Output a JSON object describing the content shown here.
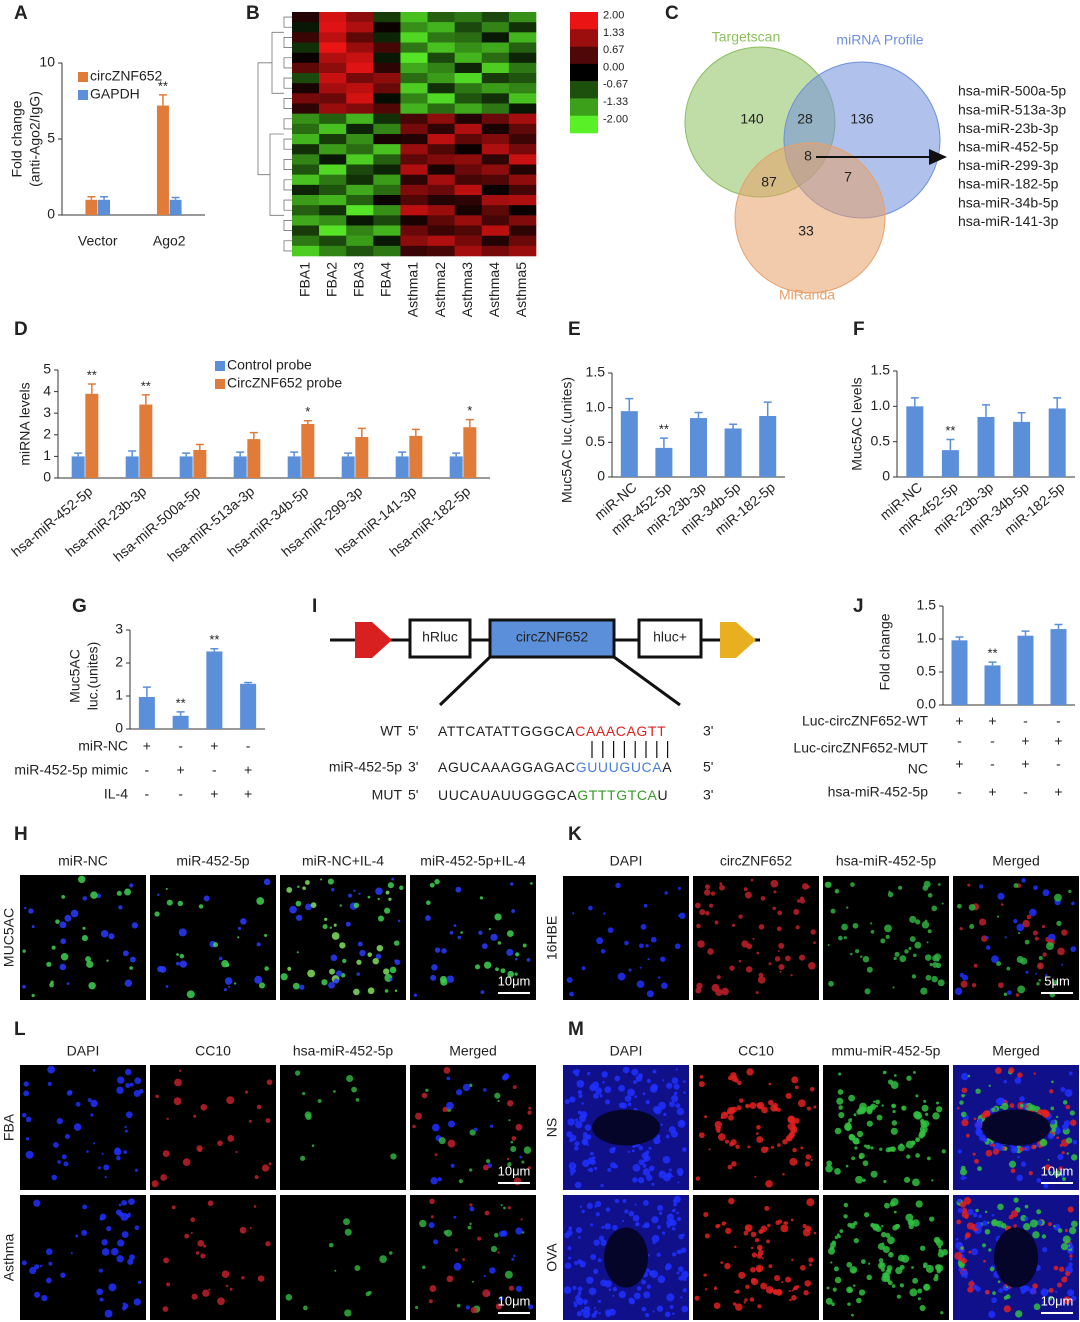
{
  "panel_labels": [
    "A",
    "B",
    "C",
    "D",
    "E",
    "F",
    "G",
    "H",
    "I",
    "J",
    "K",
    "L",
    "M"
  ],
  "chart_data": [
    {
      "type": "bar",
      "ylabel": [
        "Fold change",
        "(anti-Ago2/IgG)"
      ],
      "categories": [
        "Vector",
        "Ago2"
      ],
      "series": [
        {
          "name": "circZNF652",
          "color": "#e07b39",
          "values": [
            1.0,
            7.2
          ],
          "errors": [
            0.2,
            0.7
          ],
          "significance": [
            null,
            "**"
          ]
        },
        {
          "name": "GAPDH",
          "color": "#5b8fd9",
          "values": [
            1.0,
            1.0
          ],
          "errors": [
            0.2,
            0.15
          ],
          "significance": [
            null,
            null
          ]
        }
      ],
      "ylim": [
        0,
        10
      ],
      "yticks": [
        0,
        5,
        10
      ]
    },
    {
      "type": "heatmap",
      "columns": [
        "FBA1",
        "FBA2",
        "FBA3",
        "FBA4",
        "Asthma1",
        "Asthma2",
        "Asthma3",
        "Asthma4",
        "Asthma5"
      ],
      "clim": [
        -2,
        2
      ],
      "colorbar_ticks": [
        {
          "value": 2,
          "label": "2.00"
        },
        {
          "value": 1.33,
          "label": "1.33"
        },
        {
          "value": 0.67,
          "label": "0.67"
        },
        {
          "value": 0,
          "label": "0.00"
        },
        {
          "value": -0.67,
          "label": "-0.67"
        },
        {
          "value": -1.33,
          "label": "-1.33"
        },
        {
          "value": -2,
          "label": "-2.00"
        }
      ],
      "values": [
        [
          0.3,
          1.8,
          1.2,
          -0.5,
          -1.6,
          -0.8,
          -1.0,
          -0.6,
          -1.2
        ],
        [
          -0.2,
          1.9,
          1.5,
          0.1,
          -1.2,
          -1.5,
          -0.6,
          -1.1,
          -0.4
        ],
        [
          0.5,
          1.6,
          0.8,
          -0.3,
          -1.8,
          -1.0,
          -0.9,
          -0.2,
          -1.5
        ],
        [
          -0.4,
          2.0,
          1.3,
          0.6,
          -1.0,
          -1.6,
          -1.2,
          -1.4,
          -0.8
        ],
        [
          0.1,
          1.5,
          1.7,
          -0.2,
          -1.9,
          -0.6,
          -1.5,
          -0.9,
          -0.3
        ],
        [
          0.8,
          1.2,
          1.9,
          0.4,
          -1.4,
          -1.1,
          -0.3,
          -1.7,
          -1.0
        ],
        [
          -0.6,
          1.7,
          1.0,
          1.2,
          -0.9,
          -1.3,
          -1.8,
          -0.5,
          -0.7
        ],
        [
          0.2,
          1.4,
          1.6,
          0.9,
          -1.7,
          -0.4,
          -1.0,
          -1.3,
          -1.1
        ],
        [
          1.0,
          0.9,
          1.8,
          -0.1,
          -1.1,
          -1.8,
          -0.7,
          -0.4,
          -1.6
        ],
        [
          0.4,
          1.3,
          1.1,
          0.7,
          -1.5,
          -0.9,
          -1.4,
          -1.0,
          -0.2
        ],
        [
          -1.2,
          -0.8,
          -1.5,
          -0.4,
          0.6,
          1.2,
          0.3,
          0.9,
          1.4
        ],
        [
          -0.9,
          -1.6,
          -0.3,
          -1.1,
          1.0,
          0.4,
          1.5,
          0.2,
          0.8
        ],
        [
          -1.5,
          -0.5,
          -1.2,
          0.2,
          0.3,
          1.6,
          0.8,
          1.1,
          0.5
        ],
        [
          -0.4,
          -1.3,
          -0.9,
          -1.6,
          1.3,
          0.7,
          0.1,
          1.5,
          1.0
        ],
        [
          -1.1,
          -0.2,
          -1.7,
          -0.8,
          0.8,
          1.1,
          1.2,
          0.4,
          1.7
        ],
        [
          -0.7,
          -1.8,
          -0.6,
          -0.3,
          1.5,
          0.2,
          0.9,
          1.2,
          0.3
        ],
        [
          -1.6,
          -1.0,
          -0.4,
          -1.3,
          0.4,
          1.4,
          0.6,
          0.7,
          1.2
        ],
        [
          -0.3,
          -0.7,
          -1.4,
          -0.9,
          1.1,
          0.9,
          1.6,
          0.1,
          0.6
        ],
        [
          -1.3,
          -1.5,
          -0.8,
          0.1,
          0.7,
          0.3,
          0.4,
          1.4,
          1.5
        ],
        [
          -0.8,
          -0.4,
          -1.9,
          -1.2,
          1.6,
          1.3,
          0.2,
          0.8,
          0.1
        ],
        [
          -1.4,
          -1.2,
          -0.2,
          -0.6,
          0.2,
          0.8,
          1.3,
          0.6,
          1.1
        ],
        [
          -0.5,
          -1.9,
          -1.1,
          -1.5,
          0.9,
          0.5,
          0.7,
          1.6,
          0.4
        ],
        [
          -1.0,
          -0.6,
          -1.3,
          -0.2,
          1.2,
          1.5,
          1.0,
          0.3,
          0.9
        ],
        [
          -1.7,
          -1.1,
          -0.7,
          -1.0,
          0.5,
          0.6,
          1.4,
          1.0,
          1.3
        ]
      ]
    },
    {
      "type": "venn",
      "sets": [
        "Targetscan",
        "miRNA Profile",
        "MiRanda"
      ],
      "colors": [
        "#8cbf5e",
        "#6f8fdc",
        "#e8a06a"
      ],
      "regions": [
        140,
        28,
        136,
        8,
        87,
        7,
        33
      ],
      "highlight_list": [
        "hsa-miR-500a-5p",
        "hsa-miR-513a-3p",
        "hsa-miR-23b-3p",
        "hsa-miR-452-5p",
        "hsa-miR-299-3p",
        "hsa-miR-182-5p",
        "hsa-miR-34b-5p",
        "hsa-miR-141-3p"
      ]
    },
    {
      "type": "bar",
      "ylabel": "miRNA levels",
      "categories": [
        "hsa-miR-452-5p",
        "hsa-miR-23b-3p",
        "hsa-miR-500a-5p",
        "hsa-miR-513a-3p",
        "hsa-miR-34b-5p",
        "hsa-miR-299-3p",
        "hsa-miR-141-3p",
        "hsa-miR-182-5p"
      ],
      "series": [
        {
          "name": "Control probe",
          "color": "#5b8fd9",
          "values": [
            1,
            1,
            1,
            1,
            1,
            1,
            1,
            1
          ],
          "errors": [
            0.15,
            0.25,
            0.15,
            0.2,
            0.2,
            0.15,
            0.2,
            0.15
          ],
          "significance": [
            null,
            null,
            null,
            null,
            null,
            null,
            null,
            null
          ]
        },
        {
          "name": "CircZNF652 probe",
          "color": "#e07b39",
          "values": [
            3.9,
            3.4,
            1.3,
            1.8,
            2.5,
            1.9,
            1.95,
            2.35
          ],
          "errors": [
            0.45,
            0.45,
            0.25,
            0.3,
            0.15,
            0.4,
            0.3,
            0.35
          ],
          "significance": [
            "**",
            "**",
            null,
            null,
            "*",
            null,
            null,
            "*"
          ]
        }
      ],
      "ylim": [
        0,
        5
      ],
      "yticks": [
        0,
        1,
        2,
        3,
        4,
        5
      ]
    },
    {
      "type": "bar",
      "ylabel": "Muc5AC luc.(unites)",
      "categories": [
        "miR-NC",
        "miR-452-5p",
        "miR-23b-3p",
        "miR-34b-5p",
        "miR-182-5p"
      ],
      "color": "#5b8fd9",
      "values": [
        0.95,
        0.42,
        0.85,
        0.7,
        0.88
      ],
      "errors": [
        0.18,
        0.14,
        0.08,
        0.06,
        0.2
      ],
      "significance": [
        null,
        "**",
        null,
        null,
        null
      ],
      "ylim": [
        0,
        1.5
      ],
      "yticks": [
        0,
        0.5,
        {
          "value": 1,
          "label": "1.0"
        },
        1.5
      ]
    },
    {
      "type": "bar",
      "ylabel": "Muc5AC levels",
      "categories": [
        "miR-NC",
        "miR-452-5p",
        "miR-23b-3p",
        "miR-34b-5p",
        "miR-182-5p"
      ],
      "color": "#5b8fd9",
      "values": [
        1.0,
        0.38,
        0.85,
        0.78,
        0.97
      ],
      "errors": [
        0.12,
        0.15,
        0.17,
        0.13,
        0.15
      ],
      "significance": [
        null,
        "**",
        null,
        null,
        null
      ],
      "ylim": [
        0,
        1.5
      ],
      "yticks": [
        0,
        0.5,
        {
          "value": 1,
          "label": "1.0"
        },
        1.5
      ]
    },
    {
      "type": "bar",
      "ylabel": [
        "Muc5AC",
        "luc.(unites)"
      ],
      "color": "#5b8fd9",
      "values": [
        0.97,
        0.4,
        2.35,
        1.37
      ],
      "errors": [
        0.3,
        0.12,
        0.08,
        0.04
      ],
      "significance": [
        null,
        "**",
        "**",
        null
      ],
      "ylim": [
        0,
        3
      ],
      "yticks": [
        0,
        1,
        2,
        3
      ],
      "conditions": [
        {
          "label": "miR-NC",
          "signs": [
            "+",
            "-",
            "+",
            "-"
          ]
        },
        {
          "label": "miR-452-5p mimic",
          "signs": [
            "-",
            "+",
            "-",
            "+"
          ]
        },
        {
          "label": "IL-4",
          "signs": [
            "-",
            "-",
            "+",
            "+"
          ]
        }
      ]
    },
    {
      "type": "bar",
      "ylabel": "Fold change",
      "color": "#5b8fd9",
      "values": [
        0.98,
        0.6,
        1.05,
        1.15
      ],
      "errors": [
        0.05,
        0.05,
        0.07,
        0.07
      ],
      "significance": [
        null,
        "**",
        null,
        null
      ],
      "ylim": [
        0,
        1.5
      ],
      "yticks": [
        {
          "value": 0,
          "label": "0.0"
        },
        0.5,
        {
          "value": 1,
          "label": "1.0"
        },
        1.5
      ],
      "conditions": [
        {
          "label": "Luc-circZNF652-WT",
          "signs": [
            "+",
            "+",
            "-",
            "-"
          ]
        },
        {
          "label": "Luc-circZNF652-MUT",
          "signs": [
            "-",
            "-",
            "+",
            "+"
          ]
        },
        {
          "label": "NC",
          "signs": [
            "+",
            "-",
            "+",
            "-"
          ]
        },
        {
          "label": "hsa-miR-452-5p",
          "signs": [
            "-",
            "+",
            "-",
            "+"
          ]
        }
      ]
    }
  ],
  "construct": {
    "elements": [
      "hRluc",
      "circZNF652",
      "hluc+"
    ],
    "sequences": [
      {
        "name": "WT",
        "left_end": "5'",
        "parts": [
          "ATTCATATTGGGCA",
          "CAAACAGTT"
        ],
        "part_colors": [
          "#222222",
          "#e02020"
        ],
        "right_end": "3'"
      },
      {
        "name": "miR-452-5p",
        "left_end": "3'",
        "parts": [
          "AGUCAAAGGAGAC",
          "GUUUGUCA",
          "A"
        ],
        "part_colors": [
          "#222222",
          "#4a7fd8",
          "#222222"
        ],
        "right_end": "5'"
      },
      {
        "name": "MUT",
        "left_end": "5'",
        "parts": [
          "UUCAUAUUGGGCA",
          "GTTTGTCA",
          "U"
        ],
        "part_colors": [
          "#222222",
          "#3a9a2a",
          "#222222"
        ],
        "right_end": "3'"
      }
    ]
  },
  "micrographs": [
    {
      "columns": [
        "miR-NC",
        "miR-452-5p",
        "miR-NC+IL-4",
        "miR-452-5p+IL-4"
      ],
      "rows": [
        "MUC5AC"
      ],
      "scale_bars": [
        "10μm"
      ]
    },
    {
      "columns": [
        "DAPI",
        "circZNF652",
        "hsa-miR-452-5p",
        "Merged"
      ],
      "rows": [
        "16HBE"
      ],
      "scale_bars": [
        "5μm"
      ]
    },
    {
      "columns": [
        "DAPI",
        "CC10",
        "hsa-miR-452-5p",
        "Merged"
      ],
      "rows": [
        "FBA",
        "Asthma"
      ],
      "scale_bars": [
        "10μm",
        "10μm"
      ]
    },
    {
      "columns": [
        "DAPI",
        "CC10",
        "mmu-miR-452-5p",
        "Merged"
      ],
      "rows": [
        "NS",
        "OVA"
      ],
      "scale_bars": [
        "10μm",
        "10μm"
      ]
    }
  ]
}
